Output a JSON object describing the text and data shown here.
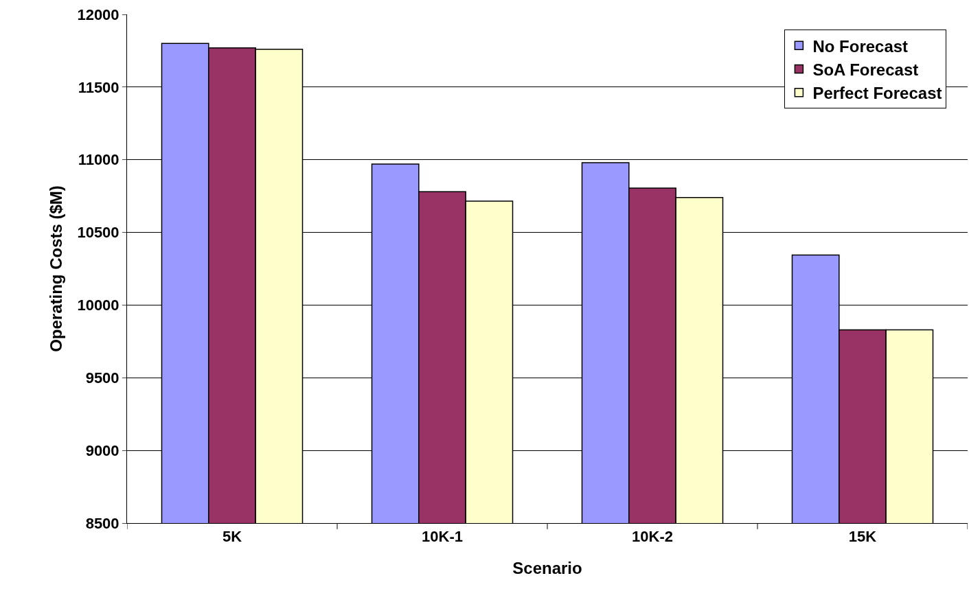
{
  "chart_data": {
    "type": "bar",
    "xlabel": "Scenario",
    "ylabel": "Operating Costs ($M)",
    "categories": [
      "5K",
      "10K-1",
      "10K-2",
      "15K"
    ],
    "series": [
      {
        "name": "No Forecast",
        "color": "#9999ff",
        "values": [
          11800,
          10970,
          10980,
          10345
        ]
      },
      {
        "name": "SoA Forecast",
        "color": "#993366",
        "values": [
          11770,
          10780,
          10805,
          9830
        ]
      },
      {
        "name": "Perfect Forecast",
        "color": "#ffffcc",
        "values": [
          11760,
          10715,
          10740,
          9830
        ]
      }
    ],
    "ylim": [
      8500,
      12000
    ],
    "yticks": [
      8500,
      9000,
      9500,
      10000,
      10500,
      11000,
      11500,
      12000
    ],
    "grid": "y",
    "legend": "top right"
  }
}
